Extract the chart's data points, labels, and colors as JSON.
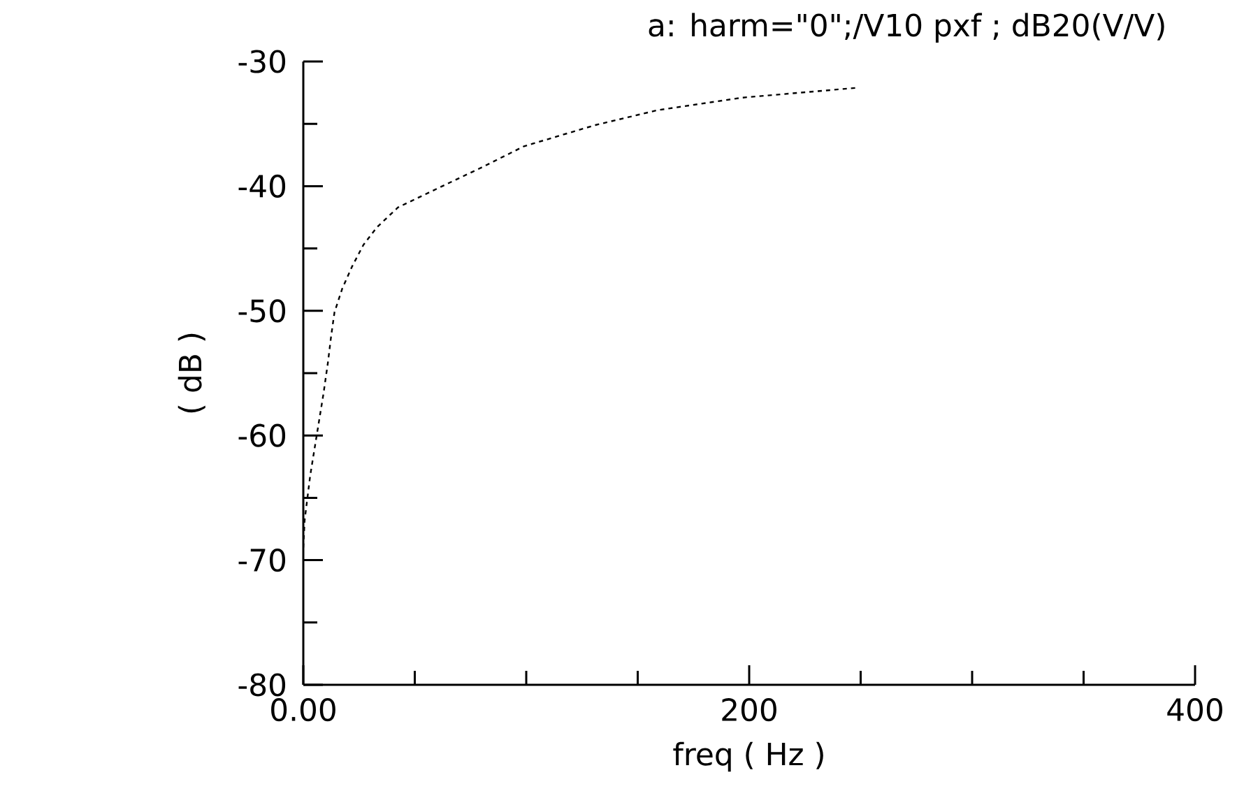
{
  "chart_data": {
    "type": "line",
    "title": "a: harm=\"0\";/V10 pxf ; dB20(V/V)",
    "xlabel": "freq ( Hz )",
    "ylabel": "( dB )",
    "xlim": [
      0,
      400
    ],
    "ylim": [
      -80,
      -30
    ],
    "xticks": [
      {
        "value": 0,
        "label": "0.00"
      },
      200,
      400
    ],
    "yticks": [
      -80,
      -70,
      -60,
      -50,
      -40,
      -30
    ],
    "line_style": "dashed",
    "marker": "none",
    "grid": false,
    "series": [
      {
        "color": "#000000",
        "x": [
          0,
          0.6,
          3.1,
          6,
          9,
          11,
          12.5,
          14,
          17.5,
          22,
          27,
          33,
          42.5,
          60,
          80,
          99,
          131,
          159,
          197,
          249
        ],
        "values": [
          -69,
          -66.8,
          -63.2,
          -60,
          -56.7,
          -54.2,
          -52,
          -50.1,
          -48.2,
          -46.4,
          -44.7,
          -43.3,
          -41.7,
          -40.2,
          -38.5,
          -36.8,
          -35.1,
          -33.9,
          -32.9,
          -32.1
        ]
      }
    ]
  }
}
